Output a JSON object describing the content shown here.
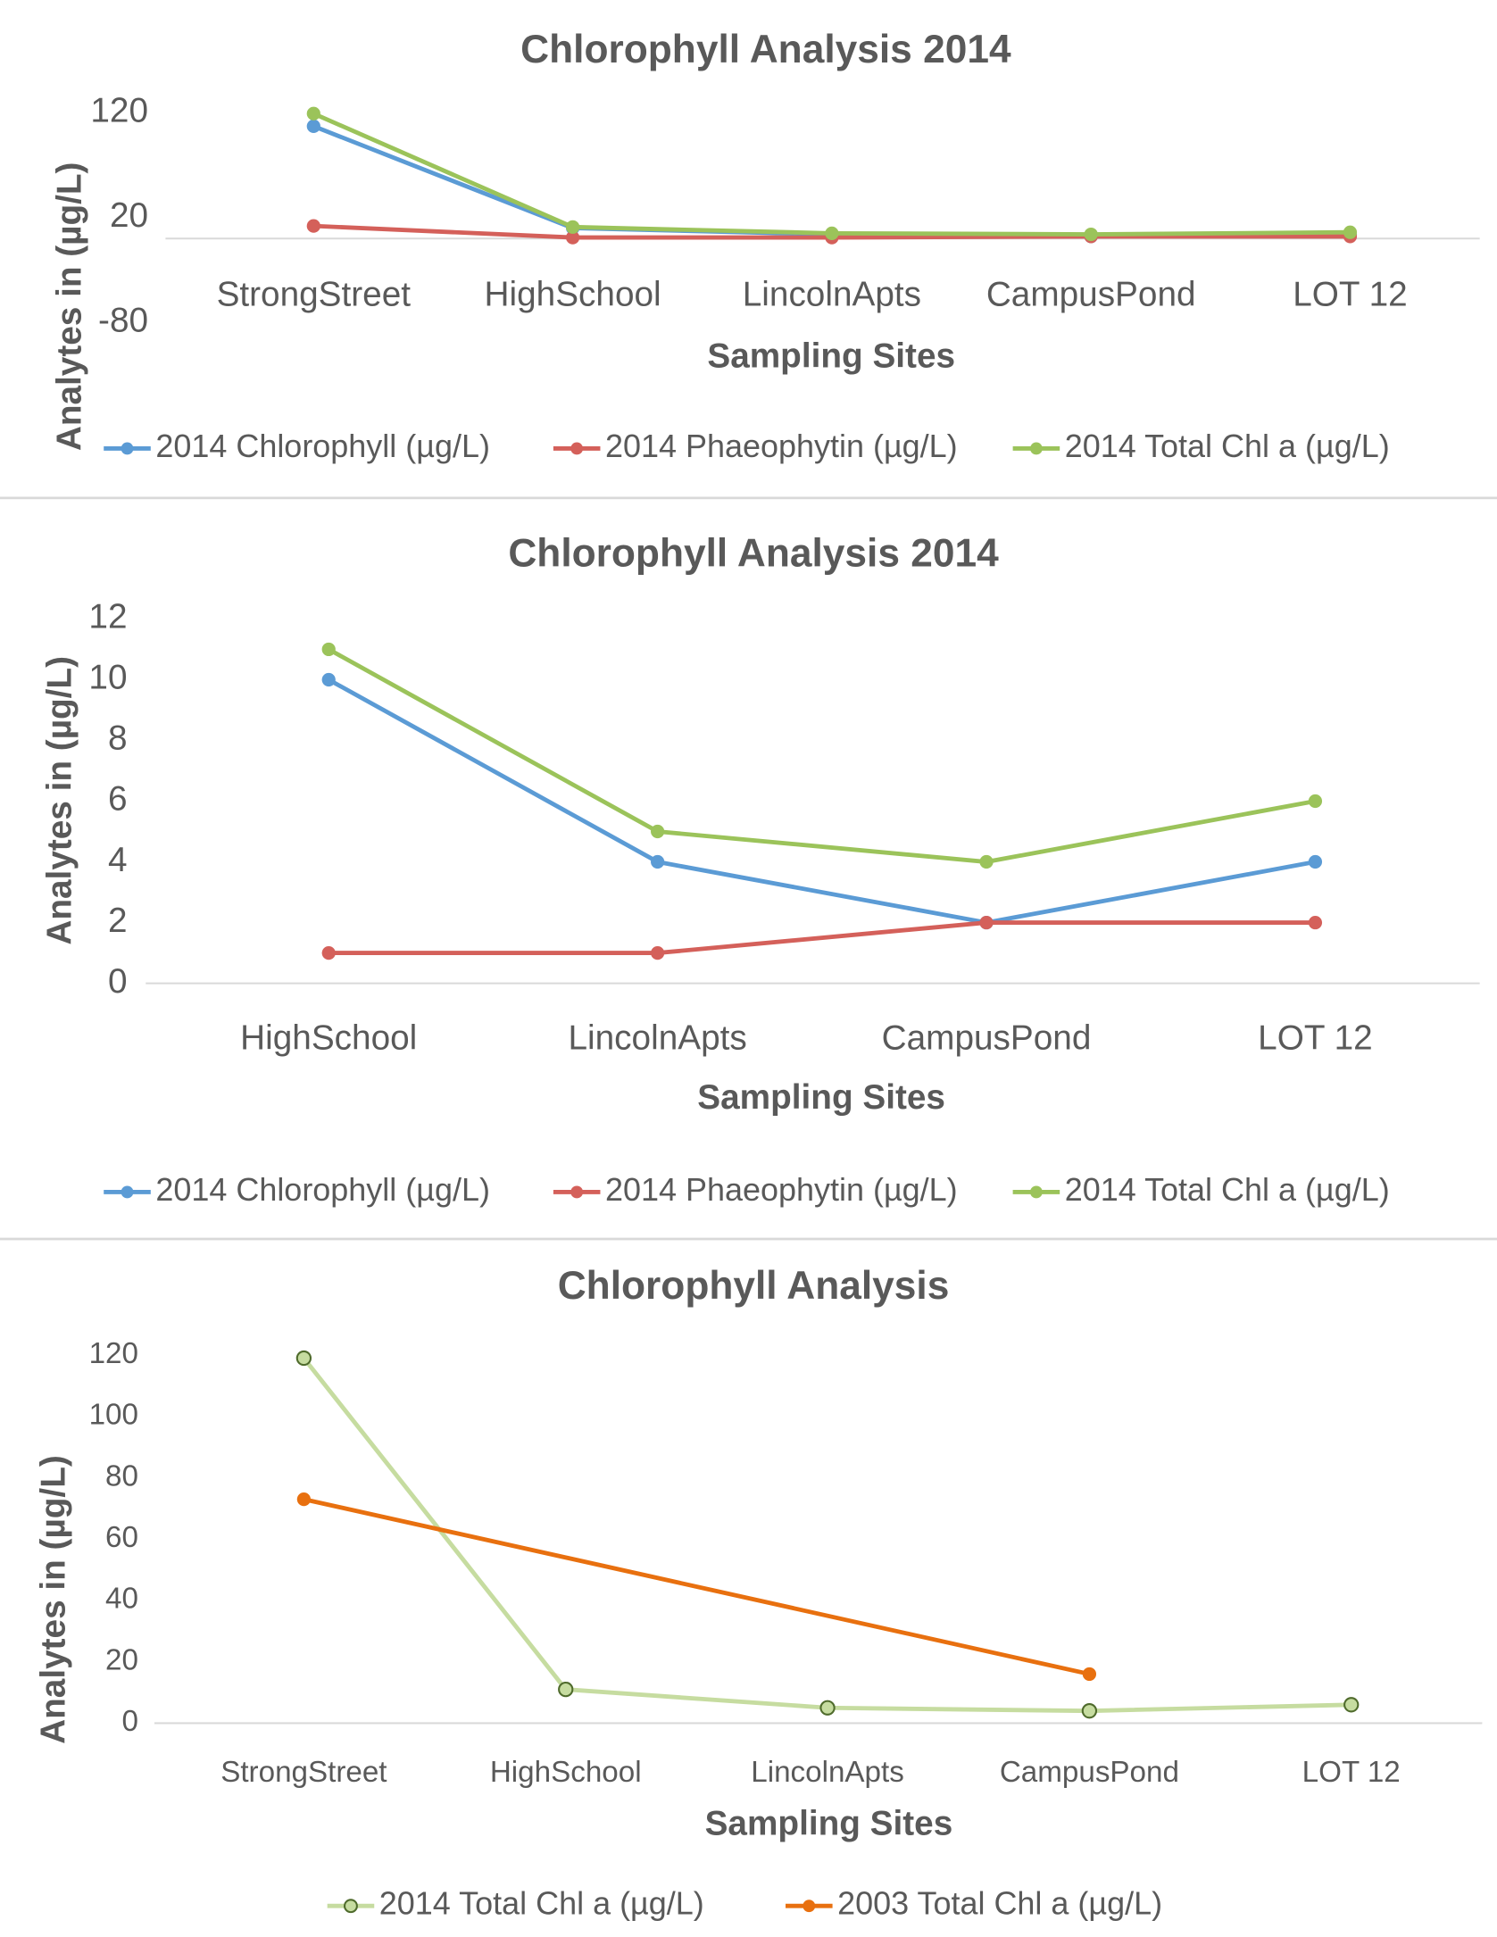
{
  "chart_data": [
    {
      "type": "line",
      "title": "Chlorophyll Analysis 2014",
      "x_label": "Sampling Sites",
      "y_label": "Analytes in  (µg/L)",
      "categories": [
        "StrongStreet",
        "HighSchool",
        "LincolnApts",
        "CampusPond",
        "LOT 12"
      ],
      "series": [
        {
          "name": "2014 Chlorophyll (µg/L)",
          "color": "#5b9bd5",
          "values": [
            107,
            10,
            4,
            2,
            4
          ]
        },
        {
          "name": "2014 Phaeophytin (µg/L)",
          "color": "#d4605a",
          "values": [
            12,
            1,
            1,
            2,
            2
          ]
        },
        {
          "name": "2014 Total Chl a (µg/L)",
          "color": "#9bc35a",
          "values": [
            119,
            11,
            5,
            4,
            6
          ]
        }
      ],
      "ylim": [
        -80,
        120
      ],
      "yticks": [
        -80,
        20,
        120
      ],
      "legend": "bottom"
    },
    {
      "type": "line",
      "title": "Chlorophyll Analysis 2014",
      "x_label": "Sampling Sites",
      "y_label": "Analytes in  (µg/L)",
      "categories": [
        "HighSchool",
        "LincolnApts",
        "CampusPond",
        "LOT 12"
      ],
      "series": [
        {
          "name": "2014 Chlorophyll (µg/L)",
          "color": "#5b9bd5",
          "values": [
            10,
            4,
            2,
            4
          ]
        },
        {
          "name": "2014 Phaeophytin (µg/L)",
          "color": "#d4605a",
          "values": [
            1,
            1,
            2,
            2
          ]
        },
        {
          "name": "2014 Total Chl a (µg/L)",
          "color": "#9bc35a",
          "values": [
            11,
            5,
            4,
            6
          ]
        }
      ],
      "ylim": [
        0,
        12
      ],
      "yticks": [
        0,
        2,
        4,
        6,
        8,
        10,
        12
      ],
      "legend": "bottom"
    },
    {
      "type": "line",
      "title": "Chlorophyll Analysis",
      "x_label": "Sampling Sites",
      "y_label": "Analytes in  (µg/L)",
      "categories": [
        "StrongStreet",
        "HighSchool",
        "LincolnApts",
        "CampusPond",
        "LOT 12"
      ],
      "series": [
        {
          "name": "2014 Total Chl a (µg/L)",
          "color": "#c6dca0",
          "marker_edge": "#4f6b2c",
          "values": [
            119,
            11,
            5,
            4,
            6
          ]
        },
        {
          "name": "2003 Total Chl a (µg/L)",
          "color": "#e8700f",
          "values": [
            73,
            null,
            null,
            16,
            null
          ]
        }
      ],
      "ylim": [
        0,
        120
      ],
      "yticks": [
        0,
        20,
        40,
        60,
        80,
        100,
        120
      ],
      "connect_gaps": true,
      "legend": "bottom"
    }
  ]
}
